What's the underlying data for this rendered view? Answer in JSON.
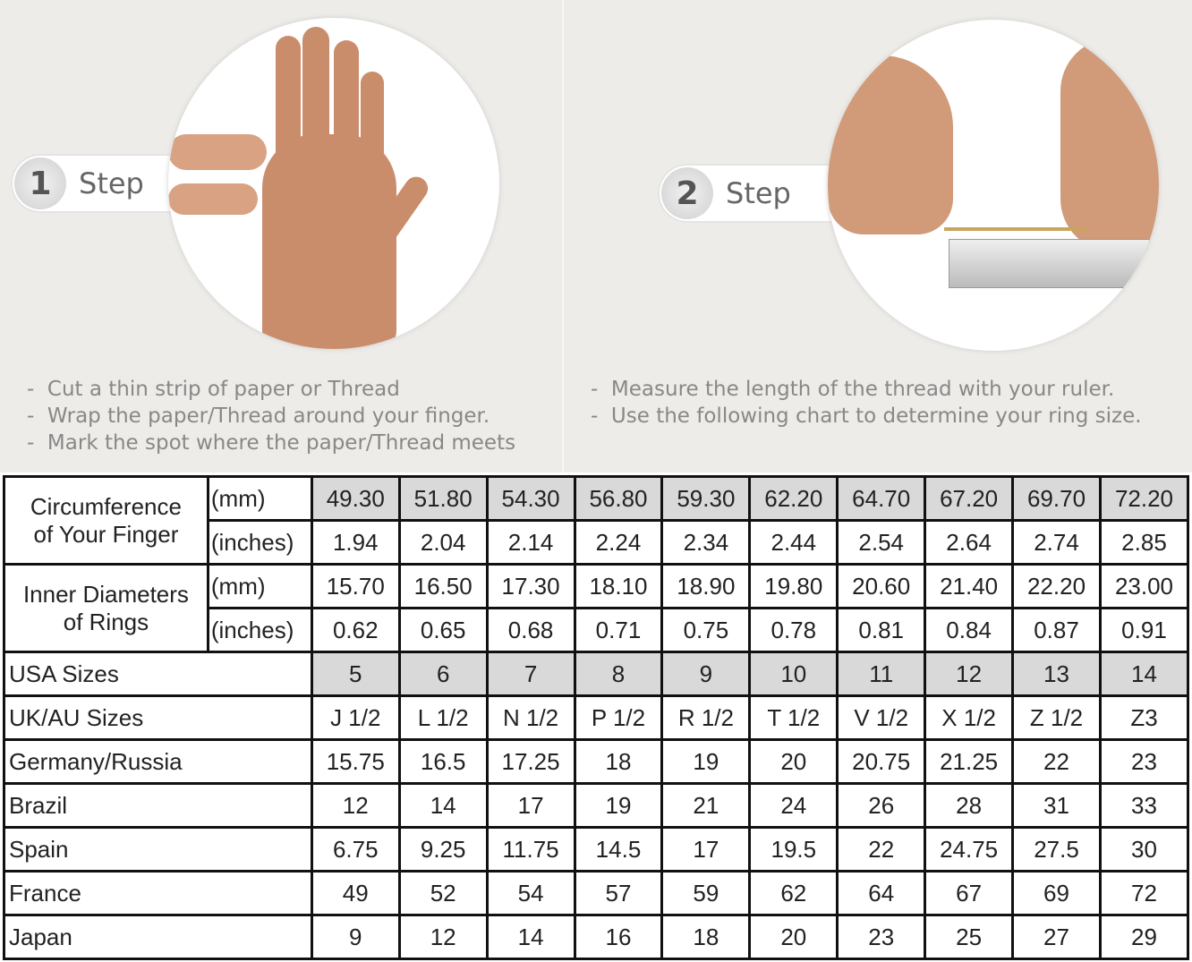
{
  "step1": {
    "number": "1",
    "label": "Step",
    "bullets": [
      "Cut a thin strip of paper or Thread",
      "Wrap the paper/Thread around your finger.",
      "Mark the spot where the paper/Thread meets"
    ]
  },
  "step2": {
    "number": "2",
    "label": "Step",
    "bullets": [
      "Measure the length of the thread with your ruler.",
      "Use the following chart to determine your ring size."
    ]
  },
  "table": {
    "circumference": {
      "label_line1": "Circumference",
      "label_line2": "of Your Finger",
      "mm_unit": "(mm)",
      "in_unit": "(inches)",
      "mm": [
        "49.30",
        "51.80",
        "54.30",
        "56.80",
        "59.30",
        "62.20",
        "64.70",
        "67.20",
        "69.70",
        "72.20"
      ],
      "inches": [
        "1.94",
        "2.04",
        "2.14",
        "2.24",
        "2.34",
        "2.44",
        "2.54",
        "2.64",
        "2.74",
        "2.85"
      ]
    },
    "diameter": {
      "label_line1": "Inner Diameters",
      "label_line2": "of Rings",
      "mm_unit": "(mm)",
      "in_unit": "(inches)",
      "mm": [
        "15.70",
        "16.50",
        "17.30",
        "18.10",
        "18.90",
        "19.80",
        "20.60",
        "21.40",
        "22.20",
        "23.00"
      ],
      "inches": [
        "0.62",
        "0.65",
        "0.68",
        "0.71",
        "0.75",
        "0.78",
        "0.81",
        "0.84",
        "0.87",
        "0.91"
      ]
    },
    "rows": [
      {
        "label": "USA Sizes",
        "values": [
          "5",
          "6",
          "7",
          "8",
          "9",
          "10",
          "11",
          "12",
          "13",
          "14"
        ]
      },
      {
        "label": "UK/AU Sizes",
        "values": [
          "J 1/2",
          "L 1/2",
          "N 1/2",
          "P 1/2",
          "R 1/2",
          "T 1/2",
          "V 1/2",
          "X 1/2",
          "Z 1/2",
          "Z3"
        ]
      },
      {
        "label": "Germany/Russia",
        "values": [
          "15.75",
          "16.5",
          "17.25",
          "18",
          "19",
          "20",
          "20.75",
          "21.25",
          "22",
          "23"
        ]
      },
      {
        "label": "Brazil",
        "values": [
          "12",
          "14",
          "17",
          "19",
          "21",
          "24",
          "26",
          "28",
          "31",
          "33"
        ]
      },
      {
        "label": "Spain",
        "values": [
          "6.75",
          "9.25",
          "11.75",
          "14.5",
          "17",
          "19.5",
          "22",
          "24.75",
          "27.5",
          "30"
        ]
      },
      {
        "label": "France",
        "values": [
          "49",
          "52",
          "54",
          "57",
          "59",
          "62",
          "64",
          "67",
          "69",
          "72"
        ]
      },
      {
        "label": "Japan",
        "values": [
          "9",
          "12",
          "14",
          "16",
          "18",
          "20",
          "23",
          "25",
          "27",
          "29"
        ]
      }
    ]
  }
}
